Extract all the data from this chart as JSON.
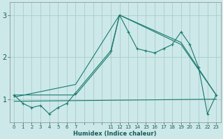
{
  "xlabel": "Humidex (Indice chaleur)",
  "background_color": "#cce8e8",
  "grid_color": "#aacccc",
  "line_color": "#1a7a6e",
  "xlim": [
    -0.5,
    23.5
  ],
  "ylim": [
    0.45,
    3.3
  ],
  "xticks": [
    0,
    1,
    2,
    3,
    4,
    5,
    6,
    7,
    11,
    12,
    13,
    14,
    15,
    16,
    17,
    18,
    19,
    20,
    21,
    22,
    23
  ],
  "yticks": [
    1,
    2,
    3
  ],
  "lines": [
    {
      "x": [
        0,
        1,
        2,
        3,
        4,
        5,
        6,
        7,
        11,
        12,
        13,
        14,
        15,
        16,
        17,
        18,
        19,
        20,
        21,
        22,
        23
      ],
      "y": [
        1.1,
        0.9,
        0.8,
        0.85,
        0.65,
        0.8,
        0.9,
        1.15,
        2.15,
        3.0,
        2.6,
        2.2,
        2.15,
        2.1,
        2.2,
        2.3,
        2.6,
        2.3,
        1.75,
        0.65,
        1.1
      ],
      "has_marker": true
    },
    {
      "x": [
        0,
        7,
        11,
        12,
        19,
        23
      ],
      "y": [
        1.1,
        1.1,
        2.1,
        3.0,
        2.3,
        1.1
      ],
      "has_marker": false
    },
    {
      "x": [
        0,
        7,
        12,
        19,
        23
      ],
      "y": [
        1.05,
        1.35,
        3.0,
        2.35,
        1.1
      ],
      "has_marker": false
    },
    {
      "x": [
        0,
        23
      ],
      "y": [
        0.95,
        1.0
      ],
      "has_marker": false
    }
  ]
}
